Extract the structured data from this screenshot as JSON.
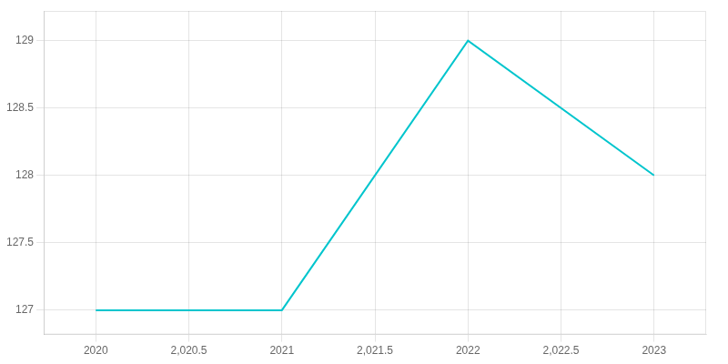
{
  "chart_data": {
    "type": "line",
    "x": [
      2020,
      2021,
      2022,
      2023
    ],
    "values": [
      127,
      127,
      129,
      128
    ],
    "color": "#00C5CD",
    "xlim": [
      2019.72,
      2023.28
    ],
    "ylim": [
      126.82,
      129.22
    ],
    "xticks": [
      2020,
      {
        "value": 2020.5,
        "label": "2,020.5"
      },
      2021,
      {
        "value": 2021.5,
        "label": "2,021.5"
      },
      2022,
      {
        "value": 2022.5,
        "label": "2,022.5"
      },
      2023
    ],
    "yticks": [
      127,
      127.5,
      128,
      128.5,
      129
    ],
    "grid": true
  }
}
